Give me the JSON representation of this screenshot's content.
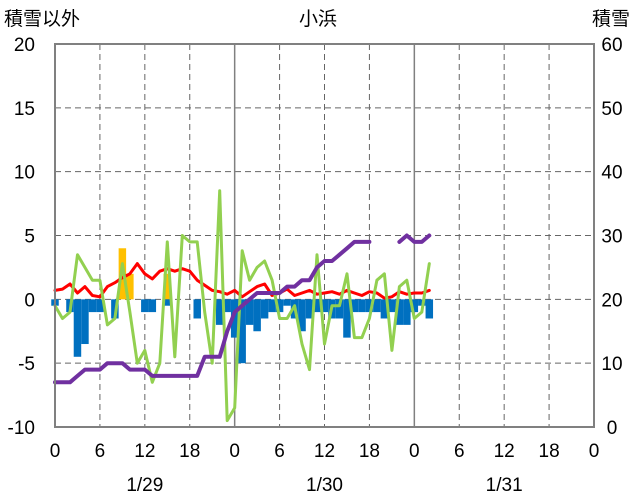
{
  "chart_data": {
    "type": "bar+line",
    "title": "小浜",
    "left_axis": {
      "label": "積雪以外",
      "range": [
        -10,
        20
      ],
      "ticks": [
        "-10",
        "-5",
        "0",
        "5",
        "10",
        "15",
        "20"
      ]
    },
    "right_axis": {
      "label": "積雪",
      "range": [
        0,
        60
      ],
      "ticks": [
        "0",
        "10",
        "20",
        "30",
        "40",
        "50",
        "60"
      ]
    },
    "x_axis": {
      "range_hours": [
        0,
        72
      ],
      "tick_labels": [
        "0",
        "6",
        "12",
        "18",
        "0",
        "6",
        "12",
        "18",
        "0",
        "6",
        "12",
        "18",
        "0"
      ],
      "date_labels": [
        "1/29",
        "1/30",
        "1/31"
      ]
    },
    "grid": true,
    "colors": {
      "background": "#ffffff",
      "grid": "#666666",
      "border": "#808080",
      "solid_grid": "#808080",
      "temperature": "#ff0000",
      "wind": "#92d050",
      "snow_depth": "#7030a0",
      "precip_bar": "#ffc000",
      "anomaly_bar": "#0070c0"
    },
    "series": [
      {
        "type": "bar",
        "axis": "left",
        "color": "#ffc000",
        "x": [
          9,
          10,
          15
        ],
        "values": [
          4.0,
          2.0,
          2.0
        ]
      },
      {
        "type": "bar",
        "axis": "left",
        "color": "#0070c0",
        "x": [
          0,
          2,
          3,
          4,
          5,
          6,
          8,
          12,
          13,
          15,
          19,
          22,
          23,
          24,
          25,
          26,
          27,
          28,
          29,
          30,
          31,
          32,
          33,
          34,
          35,
          36,
          37,
          38,
          39,
          40,
          41,
          42,
          43,
          44,
          45,
          46,
          47,
          48,
          49,
          50
        ],
        "values": [
          -0.5,
          -1.0,
          -4.5,
          -3.5,
          -1.0,
          -1.0,
          -1.5,
          -1.0,
          -1.0,
          -0.5,
          -1.5,
          -2.0,
          -1.0,
          -3.0,
          -5.0,
          -2.0,
          -2.5,
          -1.5,
          -1.0,
          -1.0,
          -0.5,
          -1.5,
          -2.5,
          -1.5,
          -1.0,
          -1.0,
          -1.5,
          -1.5,
          -3.0,
          -1.0,
          -1.0,
          -1.0,
          -1.0,
          -1.5,
          -1.0,
          -2.0,
          -2.0,
          -1.0,
          -0.5,
          -1.5
        ]
      },
      {
        "type": "line",
        "axis": "left",
        "color": "#ff0000",
        "x": [
          0,
          1,
          2,
          3,
          4,
          5,
          6,
          7,
          8,
          9,
          10,
          11,
          12,
          13,
          14,
          15,
          16,
          17,
          18,
          19,
          20,
          21,
          22,
          23,
          24,
          25,
          26,
          27,
          28,
          29,
          30,
          31,
          32,
          33,
          34,
          35,
          36,
          37,
          38,
          39,
          40,
          41,
          42,
          43,
          44,
          45,
          46,
          47,
          48,
          49,
          50
        ],
        "values": [
          0.7,
          0.8,
          1.2,
          0.5,
          1.0,
          0.3,
          0.2,
          1.0,
          1.3,
          1.7,
          2.0,
          2.8,
          2.0,
          1.6,
          2.2,
          2.4,
          2.2,
          2.4,
          2.2,
          1.5,
          1.1,
          0.7,
          0.6,
          0.4,
          0.7,
          0.2,
          0.6,
          1.0,
          1.2,
          0.3,
          0.5,
          0.8,
          0.3,
          0.5,
          0.7,
          0.4,
          0.5,
          0.6,
          0.4,
          0.7,
          0.5,
          0.3,
          0.6,
          0.5,
          0.1,
          0.2,
          0.6,
          0.4,
          0.5,
          0.5,
          0.7
        ]
      },
      {
        "type": "line",
        "axis": "left",
        "color": "#92d050",
        "x": [
          0,
          1,
          2,
          3,
          4,
          5,
          6,
          7,
          8,
          9,
          10,
          11,
          12,
          13,
          14,
          15,
          16,
          17,
          18,
          19,
          20,
          21,
          22,
          23,
          24,
          25,
          26,
          27,
          28,
          29,
          30,
          31,
          32,
          33,
          34,
          35,
          36,
          37,
          38,
          39,
          40,
          41,
          42,
          43,
          44,
          45,
          46,
          47,
          48,
          49,
          50
        ],
        "values": [
          -0.5,
          -1.5,
          -1.0,
          3.5,
          2.5,
          1.5,
          1.5,
          -2.0,
          -1.5,
          2.8,
          -1.0,
          -5.0,
          -4.0,
          -6.5,
          -5.0,
          4.5,
          -4.5,
          5.0,
          4.5,
          4.5,
          -1.0,
          -5.0,
          8.5,
          -9.5,
          -8.5,
          3.8,
          1.5,
          2.5,
          3.0,
          1.5,
          -1.5,
          -1.5,
          -0.5,
          -3.5,
          -5.5,
          3.5,
          -3.5,
          -0.5,
          -0.5,
          2.0,
          -3.0,
          -3.0,
          -1.5,
          1.5,
          2.0,
          -4.0,
          1.0,
          1.5,
          -1.5,
          -1.0,
          2.8
        ]
      },
      {
        "type": "line",
        "axis": "right",
        "color": "#7030a0",
        "segments": [
          {
            "x": [
              0,
              1,
              2,
              3,
              4,
              5,
              6,
              7,
              8,
              9,
              10,
              11,
              12,
              13,
              14,
              15,
              16,
              17,
              18,
              19,
              20,
              21,
              22,
              23,
              24,
              25,
              26,
              27,
              28,
              29,
              30,
              31,
              32,
              33,
              34,
              35,
              36,
              37,
              38,
              39,
              40,
              41,
              42
            ],
            "values": [
              7,
              7,
              7,
              8,
              9,
              9,
              9,
              10,
              10,
              10,
              9,
              9,
              9,
              8,
              8,
              8,
              8,
              8,
              8,
              8,
              11,
              11,
              11,
              15,
              18,
              19,
              20,
              21,
              21,
              21,
              21,
              22,
              22,
              23,
              23,
              25,
              26,
              26,
              27,
              28,
              29,
              29,
              29
            ]
          },
          {
            "x": [
              46,
              47,
              48,
              49,
              50
            ],
            "values": [
              29,
              30,
              29,
              29,
              30
            ]
          }
        ]
      }
    ]
  }
}
